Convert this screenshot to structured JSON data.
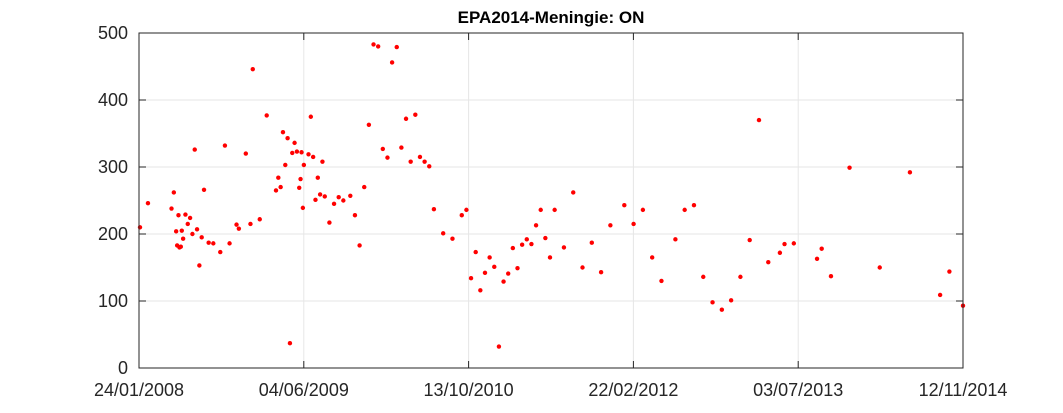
{
  "chart_data": {
    "type": "scatter",
    "title": "EPA2014-Meningie: ON",
    "xlabel": "",
    "ylabel": "",
    "xlim": [
      "2008-01-24",
      "2014-11-12"
    ],
    "ylim": [
      0,
      500
    ],
    "x_ticks": [
      "24/01/2008",
      "04/06/2009",
      "13/10/2010",
      "22/02/2012",
      "03/07/2013",
      "12/11/2014"
    ],
    "y_ticks": [
      "0",
      "100",
      "200",
      "300",
      "400",
      "500"
    ],
    "grid": true,
    "marker_color": "#ff0000",
    "series": [
      {
        "points": [
          [
            "2008-01-27",
            210
          ],
          [
            "2008-02-20",
            246
          ],
          [
            "2008-05-01",
            238
          ],
          [
            "2008-05-08",
            262
          ],
          [
            "2008-05-15",
            204
          ],
          [
            "2008-05-18",
            183
          ],
          [
            "2008-05-22",
            228
          ],
          [
            "2008-05-25",
            180
          ],
          [
            "2008-05-29",
            181
          ],
          [
            "2008-06-01",
            205
          ],
          [
            "2008-06-05",
            193
          ],
          [
            "2008-06-12",
            229
          ],
          [
            "2008-06-19",
            215
          ],
          [
            "2008-06-26",
            224
          ],
          [
            "2008-07-03",
            200
          ],
          [
            "2008-07-10",
            326
          ],
          [
            "2008-07-17",
            207
          ],
          [
            "2008-07-24",
            153
          ],
          [
            "2008-07-31",
            195
          ],
          [
            "2008-08-07",
            266
          ],
          [
            "2008-08-21",
            187
          ],
          [
            "2008-09-04",
            186
          ],
          [
            "2008-09-25",
            173
          ],
          [
            "2008-10-09",
            332
          ],
          [
            "2008-10-23",
            186
          ],
          [
            "2008-11-13",
            214
          ],
          [
            "2008-11-20",
            208
          ],
          [
            "2008-12-11",
            320
          ],
          [
            "2008-12-25",
            215
          ],
          [
            "2009-01-01",
            446
          ],
          [
            "2009-01-22",
            222
          ],
          [
            "2009-02-12",
            377
          ],
          [
            "2009-03-12",
            265
          ],
          [
            "2009-03-19",
            284
          ],
          [
            "2009-03-26",
            270
          ],
          [
            "2009-04-02",
            352
          ],
          [
            "2009-04-09",
            303
          ],
          [
            "2009-04-16",
            343
          ],
          [
            "2009-04-23",
            37
          ],
          [
            "2009-04-30",
            321
          ],
          [
            "2009-05-07",
            336
          ],
          [
            "2009-05-14",
            323
          ],
          [
            "2009-05-21",
            269
          ],
          [
            "2009-05-25",
            282
          ],
          [
            "2009-05-28",
            322
          ],
          [
            "2009-06-01",
            239
          ],
          [
            "2009-06-04",
            303
          ],
          [
            "2009-06-18",
            319
          ],
          [
            "2009-06-25",
            375
          ],
          [
            "2009-07-02",
            315
          ],
          [
            "2009-07-09",
            251
          ],
          [
            "2009-07-16",
            284
          ],
          [
            "2009-07-23",
            259
          ],
          [
            "2009-07-30",
            308
          ],
          [
            "2009-08-06",
            256
          ],
          [
            "2009-08-20",
            217
          ],
          [
            "2009-09-03",
            245
          ],
          [
            "2009-09-17",
            255
          ],
          [
            "2009-10-01",
            250
          ],
          [
            "2009-10-22",
            257
          ],
          [
            "2009-11-05",
            228
          ],
          [
            "2009-11-19",
            183
          ],
          [
            "2009-12-03",
            270
          ],
          [
            "2009-12-17",
            363
          ],
          [
            "2009-12-31",
            483
          ],
          [
            "2010-01-14",
            480
          ],
          [
            "2010-01-28",
            327
          ],
          [
            "2010-02-11",
            314
          ],
          [
            "2010-02-25",
            456
          ],
          [
            "2010-03-11",
            479
          ],
          [
            "2010-03-25",
            329
          ],
          [
            "2010-04-08",
            372
          ],
          [
            "2010-04-22",
            308
          ],
          [
            "2010-05-06",
            378
          ],
          [
            "2010-05-20",
            315
          ],
          [
            "2010-06-03",
            308
          ],
          [
            "2010-06-17",
            301
          ],
          [
            "2010-07-01",
            237
          ],
          [
            "2010-07-29",
            201
          ],
          [
            "2010-08-26",
            193
          ],
          [
            "2010-09-23",
            228
          ],
          [
            "2010-10-07",
            236
          ],
          [
            "2010-10-21",
            134
          ],
          [
            "2010-11-04",
            173
          ],
          [
            "2010-11-18",
            116
          ],
          [
            "2010-12-02",
            142
          ],
          [
            "2010-12-16",
            165
          ],
          [
            "2010-12-30",
            151
          ],
          [
            "2011-01-13",
            32
          ],
          [
            "2011-01-27",
            129
          ],
          [
            "2011-02-10",
            141
          ],
          [
            "2011-02-24",
            179
          ],
          [
            "2011-03-10",
            149
          ],
          [
            "2011-03-24",
            184
          ],
          [
            "2011-04-07",
            192
          ],
          [
            "2011-04-21",
            185
          ],
          [
            "2011-05-05",
            213
          ],
          [
            "2011-05-19",
            236
          ],
          [
            "2011-06-02",
            194
          ],
          [
            "2011-06-16",
            165
          ],
          [
            "2011-06-30",
            236
          ],
          [
            "2011-07-28",
            180
          ],
          [
            "2011-08-25",
            262
          ],
          [
            "2011-09-22",
            150
          ],
          [
            "2011-10-20",
            187
          ],
          [
            "2011-11-17",
            143
          ],
          [
            "2011-12-15",
            213
          ],
          [
            "2012-01-26",
            243
          ],
          [
            "2012-02-23",
            215
          ],
          [
            "2012-03-22",
            236
          ],
          [
            "2012-04-19",
            165
          ],
          [
            "2012-05-17",
            130
          ],
          [
            "2012-06-28",
            192
          ],
          [
            "2012-07-26",
            236
          ],
          [
            "2012-08-23",
            243
          ],
          [
            "2012-09-20",
            136
          ],
          [
            "2012-10-18",
            98
          ],
          [
            "2012-11-15",
            87
          ],
          [
            "2012-12-13",
            101
          ],
          [
            "2013-01-10",
            136
          ],
          [
            "2013-02-07",
            191
          ],
          [
            "2013-03-07",
            370
          ],
          [
            "2013-04-04",
            158
          ],
          [
            "2013-05-09",
            172
          ],
          [
            "2013-05-23",
            185
          ],
          [
            "2013-06-20",
            186
          ],
          [
            "2013-08-29",
            163
          ],
          [
            "2013-09-12",
            178
          ],
          [
            "2013-10-10",
            137
          ],
          [
            "2013-12-05",
            299
          ],
          [
            "2014-03-06",
            150
          ],
          [
            "2014-06-05",
            292
          ],
          [
            "2014-09-04",
            109
          ],
          [
            "2014-10-02",
            144
          ],
          [
            "2014-11-12",
            93
          ]
        ]
      }
    ]
  }
}
